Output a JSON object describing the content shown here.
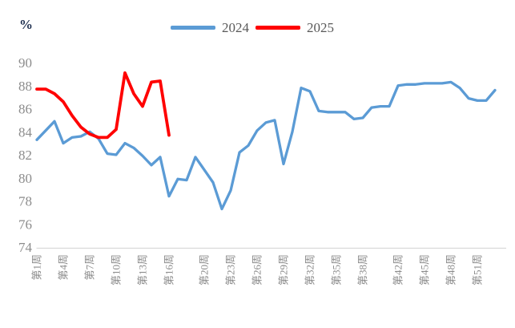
{
  "header": {
    "y_axis_unit": "%"
  },
  "chart_data": {
    "type": "line",
    "title": "",
    "xlabel": "",
    "ylabel": "%",
    "ylim": [
      74,
      90
    ],
    "y_ticks": [
      90,
      88,
      86,
      84,
      82,
      80,
      78,
      76,
      74
    ],
    "grid": false,
    "legend_position": "top-center",
    "axis_color": "#d9d9d9",
    "tick_label_color": "#8c8c8c",
    "x_tick_labels": [
      {
        "week": 1,
        "label": "第1周"
      },
      {
        "week": 4,
        "label": "第4周"
      },
      {
        "week": 7,
        "label": "第7周"
      },
      {
        "week": 10,
        "label": "第10周"
      },
      {
        "week": 13,
        "label": "第13周"
      },
      {
        "week": 16,
        "label": "第16周"
      },
      {
        "week": 20,
        "label": "第20周"
      },
      {
        "week": 23,
        "label": "第23周"
      },
      {
        "week": 26,
        "label": "第26周"
      },
      {
        "week": 29,
        "label": "第29周"
      },
      {
        "week": 32,
        "label": "第32周"
      },
      {
        "week": 35,
        "label": "第35周"
      },
      {
        "week": 38,
        "label": "第38周"
      },
      {
        "week": 42,
        "label": "第42周"
      },
      {
        "week": 45,
        "label": "第45周"
      },
      {
        "week": 48,
        "label": "第48周"
      },
      {
        "week": 51,
        "label": "第51周"
      }
    ],
    "series": [
      {
        "name": "2024",
        "color": "#5B9BD5",
        "stroke_width": 3.3,
        "start_week": 1,
        "values": [
          83.3,
          84.1,
          84.9,
          83.0,
          83.5,
          83.6,
          84.0,
          83.4,
          82.1,
          82.0,
          83.0,
          82.6,
          81.9,
          81.1,
          81.8,
          78.4,
          79.9,
          79.8,
          81.8,
          80.7,
          79.6,
          77.3,
          78.9,
          82.2,
          82.8,
          84.1,
          84.8,
          85.0,
          81.2,
          84.0,
          87.8,
          87.5,
          85.8,
          85.7,
          85.7,
          85.7,
          85.1,
          85.2,
          86.1,
          86.2,
          86.2,
          88.0,
          88.1,
          88.1,
          88.2,
          88.2,
          88.2,
          88.3,
          87.8,
          86.9,
          86.7,
          86.7,
          87.6
        ]
      },
      {
        "name": "2025",
        "color": "#FF0000",
        "stroke_width": 3.8,
        "start_week": 1,
        "values": [
          87.7,
          87.7,
          87.3,
          86.6,
          85.4,
          84.4,
          83.8,
          83.5,
          83.5,
          84.2,
          89.1,
          87.3,
          86.2,
          88.3,
          88.4,
          83.7
        ]
      }
    ]
  }
}
